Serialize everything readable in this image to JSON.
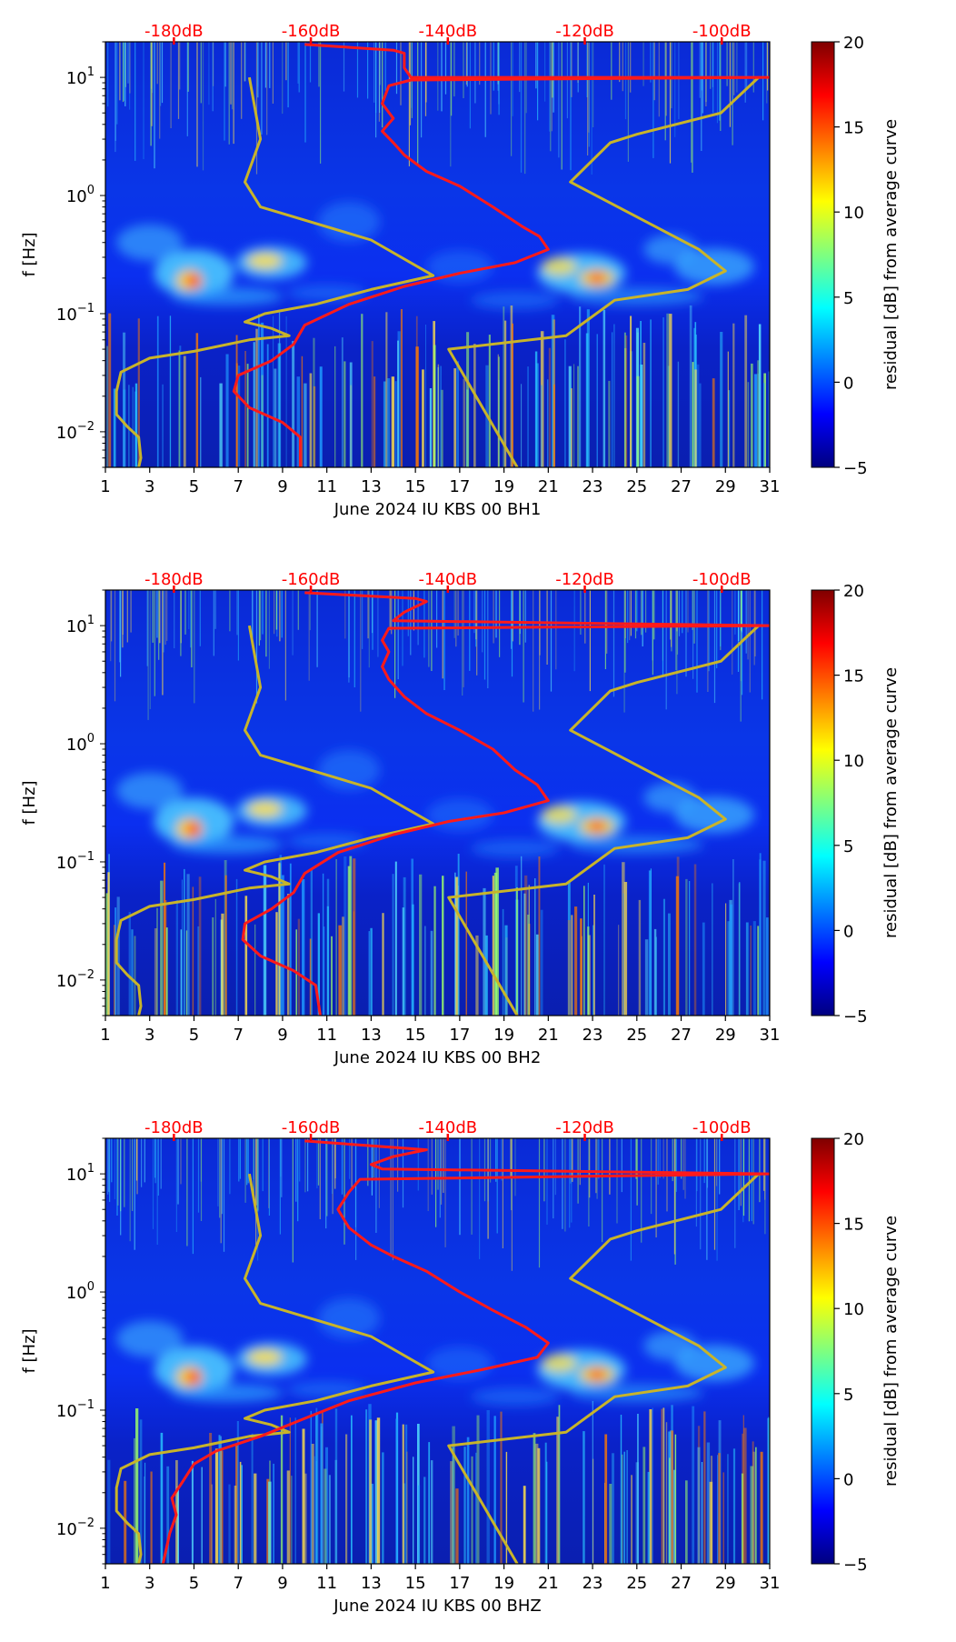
{
  "figure": {
    "x_ticks": [
      "1",
      "3",
      "5",
      "7",
      "9",
      "11",
      "13",
      "15",
      "17",
      "19",
      "21",
      "23",
      "25",
      "27",
      "29",
      "31"
    ],
    "y_ticks": [
      {
        "base": "10",
        "exp": "1",
        "value": 10
      },
      {
        "base": "10",
        "exp": "0",
        "value": 1
      },
      {
        "base": "10",
        "exp": "−1",
        "value": 0.1
      },
      {
        "base": "10",
        "exp": "−2",
        "value": 0.01
      }
    ],
    "y_label": "f [Hz]",
    "db_labels": [
      "-180dB",
      "-160dB",
      "-140dB",
      "-120dB",
      "-100dB"
    ],
    "colorbar": {
      "label": "residual [dB] from average curve",
      "ticks": [
        "20",
        "15",
        "10",
        "5",
        "0",
        "−5"
      ],
      "range": [
        -5,
        20
      ],
      "colors": [
        "#00007f",
        "#0000ff",
        "#007fff",
        "#00ffff",
        "#7fff7f",
        "#ffff00",
        "#ff7f00",
        "#ff0000",
        "#7f0000"
      ]
    },
    "line_colors": {
      "noise_model": "#c8b42a",
      "average_curve": "#ff1a1a"
    }
  },
  "chart_data": [
    {
      "type": "heatmap",
      "title": "",
      "xlabel": "June 2024 IU KBS 00 BH1",
      "ylabel": "f [Hz]",
      "xlim": [
        1,
        31
      ],
      "ylim_hz": [
        0.005,
        20
      ],
      "log_y": true,
      "top_axis_db_range": [
        -190,
        -93
      ],
      "color_range_db": [
        -5,
        20
      ],
      "series": [
        {
          "name": "noise model (days vs Hz)",
          "points": [
            [
              7.5,
              10
            ],
            [
              8.0,
              3.0
            ],
            [
              7.3,
              1.3
            ],
            [
              8.0,
              0.8
            ],
            [
              13.0,
              0.42
            ],
            [
              15.8,
              0.21
            ],
            [
              13.0,
              0.16
            ],
            [
              10.5,
              0.12
            ],
            [
              8.2,
              0.1
            ],
            [
              7.3,
              0.085
            ],
            [
              8.5,
              0.075
            ],
            [
              9.3,
              0.065
            ],
            [
              7.5,
              0.06
            ],
            [
              5.0,
              0.048
            ],
            [
              3.0,
              0.042
            ],
            [
              1.7,
              0.032
            ],
            [
              1.5,
              0.022
            ],
            [
              1.5,
              0.014
            ],
            [
              2.0,
              0.011
            ],
            [
              2.5,
              0.009
            ],
            [
              2.6,
              0.006
            ],
            [
              2.5,
              0.005
            ]
          ]
        },
        {
          "name": "noise model high (days vs Hz)",
          "points": [
            [
              30.5,
              10
            ],
            [
              28.8,
              5.0
            ],
            [
              25.0,
              3.3
            ],
            [
              23.8,
              2.8
            ],
            [
              22.0,
              1.3
            ],
            [
              27.8,
              0.35
            ],
            [
              29.0,
              0.23
            ],
            [
              27.3,
              0.16
            ],
            [
              24.0,
              0.13
            ],
            [
              21.8,
              0.065
            ],
            [
              16.5,
              0.05
            ],
            [
              19.6,
              0.005
            ]
          ]
        },
        {
          "name": "average curve (days vs Hz)",
          "points": [
            [
              10.0,
              19.0
            ],
            [
              14.0,
              17.0
            ],
            [
              14.5,
              16.0
            ],
            [
              14.5,
              12.0
            ],
            [
              14.8,
              10.0
            ],
            [
              31.0,
              10.0
            ],
            [
              14.8,
              9.5
            ],
            [
              13.8,
              8.5
            ],
            [
              13.5,
              6.0
            ],
            [
              14.0,
              4.5
            ],
            [
              13.5,
              3.5
            ],
            [
              14.0,
              2.8
            ],
            [
              14.5,
              2.2
            ],
            [
              15.5,
              1.6
            ],
            [
              17.0,
              1.2
            ],
            [
              18.5,
              0.8
            ],
            [
              19.8,
              0.55
            ],
            [
              20.6,
              0.45
            ],
            [
              21.0,
              0.35
            ],
            [
              19.5,
              0.27
            ],
            [
              17.0,
              0.22
            ],
            [
              14.5,
              0.17
            ],
            [
              12.0,
              0.12
            ],
            [
              10.0,
              0.08
            ],
            [
              9.5,
              0.055
            ],
            [
              8.5,
              0.04
            ],
            [
              7.0,
              0.03
            ],
            [
              6.8,
              0.022
            ],
            [
              7.5,
              0.016
            ],
            [
              9.0,
              0.012
            ],
            [
              9.8,
              0.009
            ],
            [
              9.8,
              0.005
            ]
          ]
        }
      ]
    },
    {
      "type": "heatmap",
      "title": "",
      "xlabel": "June 2024 IU KBS 00 BH2",
      "ylabel": "f [Hz]",
      "xlim": [
        1,
        31
      ],
      "ylim_hz": [
        0.005,
        20
      ],
      "log_y": true,
      "top_axis_db_range": [
        -190,
        -93
      ],
      "color_range_db": [
        -5,
        20
      ],
      "series": [
        {
          "name": "noise model (days vs Hz)",
          "points": [
            [
              7.5,
              10
            ],
            [
              8.0,
              3.0
            ],
            [
              7.3,
              1.3
            ],
            [
              8.0,
              0.8
            ],
            [
              13.0,
              0.42
            ],
            [
              15.8,
              0.21
            ],
            [
              13.0,
              0.16
            ],
            [
              10.5,
              0.12
            ],
            [
              8.2,
              0.1
            ],
            [
              7.3,
              0.085
            ],
            [
              8.5,
              0.075
            ],
            [
              9.3,
              0.065
            ],
            [
              7.5,
              0.06
            ],
            [
              5.0,
              0.048
            ],
            [
              3.0,
              0.042
            ],
            [
              1.7,
              0.032
            ],
            [
              1.5,
              0.022
            ],
            [
              1.5,
              0.014
            ],
            [
              2.0,
              0.011
            ],
            [
              2.5,
              0.009
            ],
            [
              2.6,
              0.006
            ],
            [
              2.5,
              0.005
            ]
          ]
        },
        {
          "name": "noise model high (days vs Hz)",
          "points": [
            [
              30.5,
              10
            ],
            [
              28.8,
              5.0
            ],
            [
              25.0,
              3.3
            ],
            [
              23.8,
              2.8
            ],
            [
              22.0,
              1.3
            ],
            [
              27.8,
              0.35
            ],
            [
              29.0,
              0.23
            ],
            [
              27.3,
              0.16
            ],
            [
              24.0,
              0.13
            ],
            [
              21.8,
              0.065
            ],
            [
              16.5,
              0.05
            ],
            [
              19.6,
              0.005
            ]
          ]
        },
        {
          "name": "average curve (days vs Hz)",
          "points": [
            [
              10.0,
              19.0
            ],
            [
              15.0,
              17.0
            ],
            [
              15.5,
              16.0
            ],
            [
              14.5,
              13.0
            ],
            [
              14.0,
              11.0
            ],
            [
              31.0,
              10.0
            ],
            [
              13.8,
              9.5
            ],
            [
              13.5,
              7.5
            ],
            [
              13.8,
              6.0
            ],
            [
              13.5,
              4.5
            ],
            [
              13.8,
              3.5
            ],
            [
              14.5,
              2.5
            ],
            [
              15.5,
              1.8
            ],
            [
              17.0,
              1.3
            ],
            [
              18.5,
              0.9
            ],
            [
              19.5,
              0.6
            ],
            [
              20.5,
              0.45
            ],
            [
              21.0,
              0.33
            ],
            [
              19.0,
              0.26
            ],
            [
              16.5,
              0.22
            ],
            [
              14.0,
              0.17
            ],
            [
              11.5,
              0.12
            ],
            [
              10.0,
              0.08
            ],
            [
              9.5,
              0.055
            ],
            [
              8.5,
              0.04
            ],
            [
              7.3,
              0.03
            ],
            [
              7.2,
              0.022
            ],
            [
              8.0,
              0.016
            ],
            [
              9.5,
              0.012
            ],
            [
              10.5,
              0.009
            ],
            [
              10.7,
              0.005
            ]
          ]
        }
      ]
    },
    {
      "type": "heatmap",
      "title": "",
      "xlabel": "June 2024 IU KBS 00 BHZ",
      "ylabel": "f [Hz]",
      "xlim": [
        1,
        31
      ],
      "ylim_hz": [
        0.005,
        20
      ],
      "log_y": true,
      "top_axis_db_range": [
        -190,
        -93
      ],
      "color_range_db": [
        -5,
        20
      ],
      "series": [
        {
          "name": "noise model (days vs Hz)",
          "points": [
            [
              7.5,
              10
            ],
            [
              8.0,
              3.0
            ],
            [
              7.3,
              1.3
            ],
            [
              8.0,
              0.8
            ],
            [
              13.0,
              0.42
            ],
            [
              15.8,
              0.21
            ],
            [
              13.0,
              0.16
            ],
            [
              10.5,
              0.12
            ],
            [
              8.2,
              0.1
            ],
            [
              7.3,
              0.085
            ],
            [
              8.5,
              0.075
            ],
            [
              9.3,
              0.065
            ],
            [
              7.5,
              0.06
            ],
            [
              5.0,
              0.048
            ],
            [
              3.0,
              0.042
            ],
            [
              1.7,
              0.032
            ],
            [
              1.5,
              0.022
            ],
            [
              1.5,
              0.014
            ],
            [
              2.0,
              0.011
            ],
            [
              2.5,
              0.009
            ],
            [
              2.6,
              0.006
            ],
            [
              2.5,
              0.005
            ]
          ]
        },
        {
          "name": "noise model high (days vs Hz)",
          "points": [
            [
              30.5,
              10
            ],
            [
              28.8,
              5.0
            ],
            [
              25.0,
              3.3
            ],
            [
              23.8,
              2.8
            ],
            [
              22.0,
              1.3
            ],
            [
              27.8,
              0.35
            ],
            [
              29.0,
              0.23
            ],
            [
              27.3,
              0.16
            ],
            [
              24.0,
              0.13
            ],
            [
              21.8,
              0.065
            ],
            [
              16.5,
              0.05
            ],
            [
              19.6,
              0.005
            ]
          ]
        },
        {
          "name": "average curve (days vs Hz)",
          "points": [
            [
              10.0,
              19.0
            ],
            [
              15.5,
              16.0
            ],
            [
              14.0,
              14.0
            ],
            [
              13.0,
              12.0
            ],
            [
              13.5,
              11.0
            ],
            [
              31.0,
              10.0
            ],
            [
              12.5,
              9.0
            ],
            [
              12.0,
              7.0
            ],
            [
              11.5,
              5.0
            ],
            [
              12.0,
              3.5
            ],
            [
              13.0,
              2.5
            ],
            [
              14.0,
              2.0
            ],
            [
              15.5,
              1.5
            ],
            [
              17.0,
              1.0
            ],
            [
              18.5,
              0.7
            ],
            [
              20.0,
              0.5
            ],
            [
              21.0,
              0.37
            ],
            [
              20.5,
              0.28
            ],
            [
              18.0,
              0.22
            ],
            [
              15.0,
              0.17
            ],
            [
              12.0,
              0.12
            ],
            [
              10.0,
              0.085
            ],
            [
              8.0,
              0.06
            ],
            [
              6.0,
              0.045
            ],
            [
              5.0,
              0.035
            ],
            [
              4.5,
              0.025
            ],
            [
              4.0,
              0.018
            ],
            [
              4.2,
              0.013
            ],
            [
              3.9,
              0.009
            ],
            [
              3.6,
              0.005
            ]
          ]
        }
      ]
    }
  ]
}
